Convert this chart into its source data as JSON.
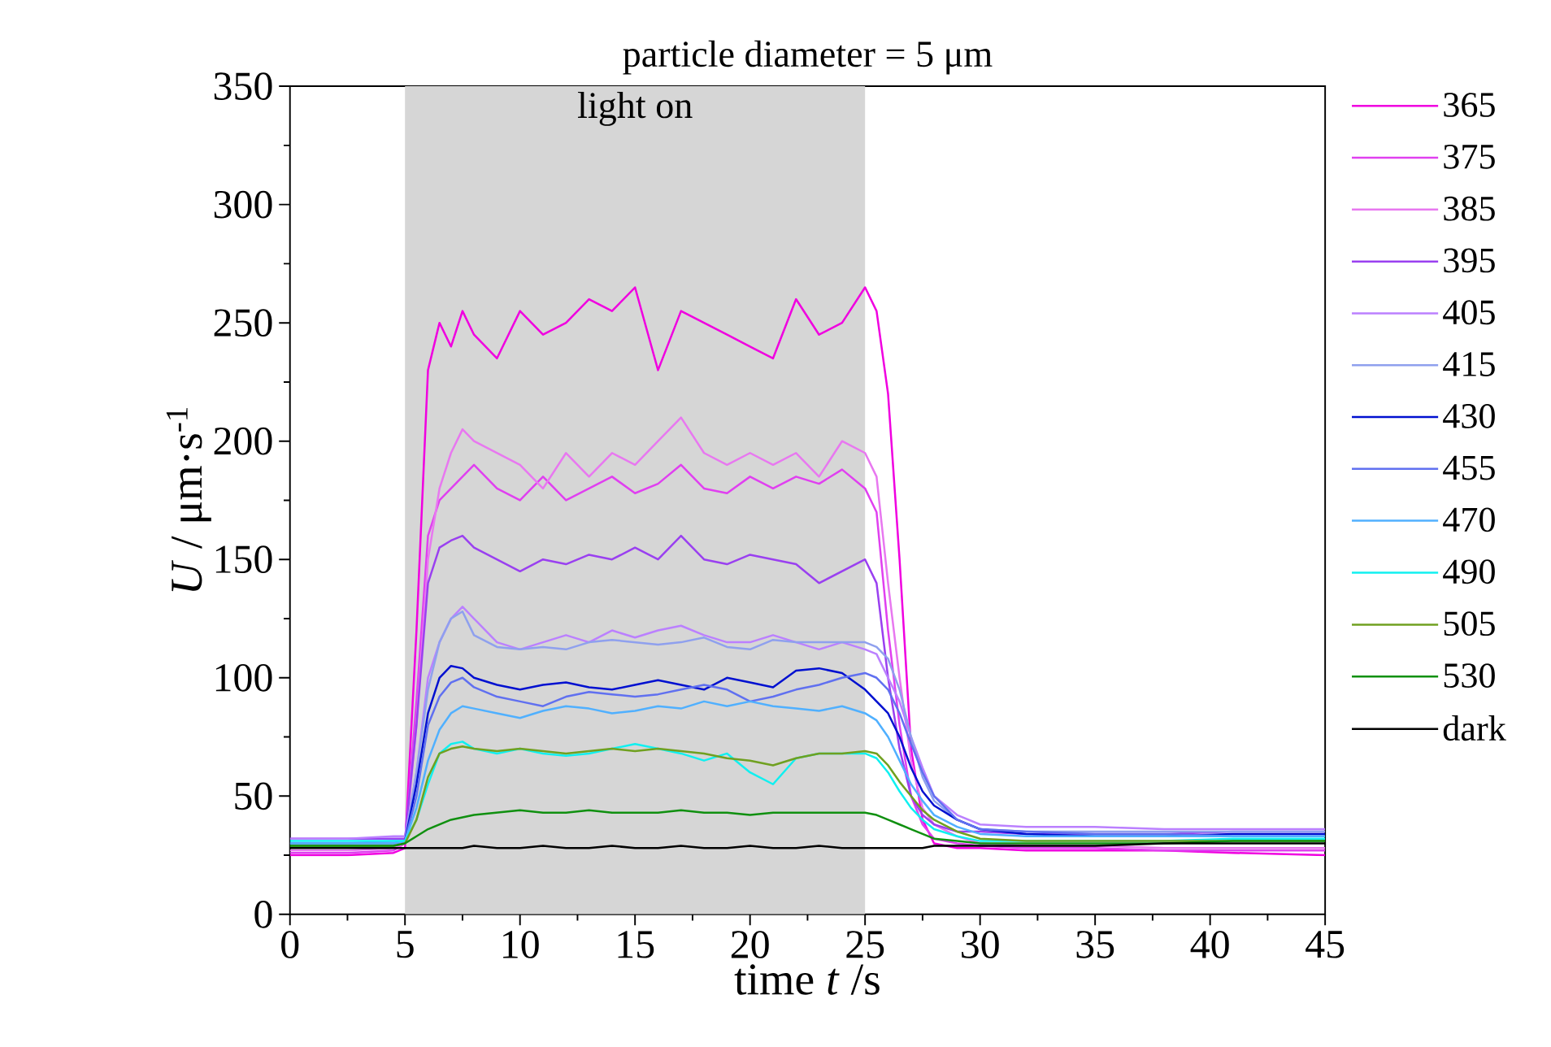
{
  "chart_data": {
    "type": "line",
    "title": "particle diameter = 5 μm",
    "xlabel": "time *t* /s",
    "ylabel": "*U* / μm·s$^{-1}$",
    "x": [
      0,
      2.5,
      4.5,
      5,
      5.5,
      6,
      6.5,
      7,
      7.5,
      8,
      9,
      10,
      11,
      12,
      13,
      14,
      15,
      16,
      17,
      18,
      19,
      20,
      21,
      22,
      23,
      24,
      25,
      25.5,
      26,
      26.5,
      27,
      27.5,
      28,
      29,
      30,
      32,
      35,
      38,
      41,
      45
    ],
    "xlim": [
      0,
      45
    ],
    "xticks": [
      0,
      5,
      10,
      15,
      20,
      25,
      30,
      35,
      40,
      45
    ],
    "ylim": [
      0,
      350
    ],
    "yticks": [
      0,
      50,
      100,
      150,
      200,
      250,
      300,
      350
    ],
    "legend": "right",
    "bands": [
      {
        "axis": "x",
        "from": 5,
        "to": 25,
        "label": "light on",
        "color": "#d6d6d6"
      }
    ],
    "series": [
      {
        "name": "365",
        "color": "#f000e0",
        "values": [
          25,
          25,
          26,
          28,
          120,
          230,
          250,
          240,
          255,
          245,
          235,
          255,
          245,
          250,
          260,
          255,
          265,
          230,
          255,
          250,
          245,
          240,
          235,
          260,
          245,
          250,
          265,
          255,
          220,
          150,
          70,
          40,
          30,
          28,
          28,
          27,
          27,
          27,
          26,
          25
        ]
      },
      {
        "name": "375",
        "color": "#e040f0",
        "values": [
          26,
          26,
          27,
          30,
          90,
          160,
          175,
          180,
          185,
          190,
          180,
          175,
          185,
          175,
          180,
          185,
          178,
          182,
          190,
          180,
          178,
          185,
          180,
          185,
          182,
          188,
          180,
          170,
          120,
          80,
          50,
          38,
          32,
          30,
          29,
          28,
          28,
          27,
          27,
          27
        ]
      },
      {
        "name": "385",
        "color": "#e878f0",
        "values": [
          27,
          27,
          28,
          30,
          80,
          150,
          180,
          195,
          205,
          200,
          195,
          190,
          180,
          195,
          185,
          195,
          190,
          200,
          210,
          195,
          190,
          195,
          190,
          195,
          185,
          200,
          195,
          185,
          140,
          100,
          65,
          45,
          38,
          33,
          30,
          29,
          29,
          28,
          28,
          28
        ]
      },
      {
        "name": "395",
        "color": "#9a40f0",
        "values": [
          32,
          32,
          32,
          32,
          80,
          140,
          155,
          158,
          160,
          155,
          150,
          145,
          150,
          148,
          152,
          150,
          155,
          150,
          160,
          150,
          148,
          152,
          150,
          148,
          140,
          145,
          150,
          140,
          100,
          70,
          50,
          42,
          38,
          35,
          35,
          34,
          34,
          34,
          35,
          35
        ]
      },
      {
        "name": "405",
        "color": "#bb80ff",
        "values": [
          32,
          32,
          33,
          33,
          60,
          100,
          115,
          125,
          130,
          125,
          115,
          112,
          115,
          118,
          115,
          120,
          117,
          120,
          122,
          118,
          115,
          115,
          118,
          115,
          112,
          115,
          112,
          110,
          100,
          90,
          75,
          62,
          50,
          42,
          38,
          37,
          37,
          36,
          36,
          36
        ]
      },
      {
        "name": "415",
        "color": "#8fa0ee",
        "values": [
          30,
          30,
          31,
          31,
          60,
          95,
          115,
          125,
          128,
          118,
          113,
          112,
          113,
          112,
          115,
          116,
          115,
          114,
          115,
          117,
          113,
          112,
          116,
          115,
          115,
          115,
          115,
          113,
          108,
          95,
          75,
          58,
          48,
          40,
          36,
          35,
          35,
          35,
          35,
          35
        ]
      },
      {
        "name": "430",
        "color": "#0010d0",
        "values": [
          null,
          null,
          30,
          31,
          55,
          85,
          100,
          105,
          104,
          100,
          97,
          95,
          97,
          98,
          96,
          95,
          97,
          99,
          97,
          95,
          100,
          98,
          96,
          103,
          104,
          102,
          95,
          90,
          85,
          75,
          62,
          52,
          46,
          40,
          36,
          34,
          33,
          33,
          34,
          34
        ]
      },
      {
        "name": "455",
        "color": "#6070f0",
        "values": [
          30,
          30,
          30,
          31,
          50,
          80,
          92,
          98,
          100,
          96,
          92,
          90,
          88,
          92,
          94,
          93,
          92,
          93,
          95,
          97,
          95,
          90,
          92,
          95,
          97,
          100,
          102,
          100,
          95,
          85,
          72,
          60,
          50,
          40,
          36,
          35,
          34,
          34,
          33,
          33
        ]
      },
      {
        "name": "470",
        "color": "#50b0ff",
        "values": [
          30,
          30,
          30,
          31,
          45,
          65,
          78,
          85,
          88,
          87,
          85,
          83,
          86,
          88,
          87,
          85,
          86,
          88,
          87,
          90,
          88,
          90,
          88,
          87,
          86,
          88,
          85,
          82,
          75,
          65,
          55,
          48,
          42,
          37,
          34,
          33,
          33,
          33,
          33,
          33
        ]
      },
      {
        "name": "490",
        "color": "#10f0f0",
        "values": [
          31,
          31,
          31,
          31,
          40,
          55,
          68,
          72,
          73,
          70,
          68,
          70,
          68,
          67,
          68,
          70,
          72,
          70,
          68,
          65,
          68,
          60,
          55,
          66,
          68,
          68,
          68,
          66,
          60,
          52,
          45,
          40,
          36,
          33,
          31,
          31,
          31,
          31,
          32,
          32
        ]
      },
      {
        "name": "505",
        "color": "#70a020",
        "values": [
          29,
          29,
          29,
          30,
          40,
          58,
          68,
          70,
          71,
          70,
          69,
          70,
          69,
          68,
          69,
          70,
          69,
          70,
          69,
          68,
          66,
          65,
          63,
          66,
          68,
          68,
          69,
          68,
          63,
          56,
          50,
          44,
          40,
          35,
          32,
          31,
          31,
          31,
          31,
          31
        ]
      },
      {
        "name": "530",
        "color": "#109010",
        "values": [
          29,
          29,
          29,
          30,
          33,
          36,
          38,
          40,
          41,
          42,
          43,
          44,
          43,
          43,
          44,
          43,
          43,
          43,
          44,
          43,
          43,
          42,
          43,
          43,
          43,
          43,
          43,
          42,
          40,
          38,
          36,
          34,
          32,
          31,
          30,
          30,
          30,
          30,
          31,
          31
        ]
      },
      {
        "name": "dark",
        "color": "#000000",
        "values": [
          28,
          28,
          28,
          28,
          28,
          28,
          28,
          28,
          28,
          29,
          28,
          28,
          29,
          28,
          28,
          29,
          28,
          28,
          29,
          28,
          28,
          29,
          28,
          28,
          29,
          28,
          28,
          28,
          28,
          28,
          28,
          28,
          29,
          29,
          29,
          29,
          29,
          30,
          30,
          30
        ]
      }
    ]
  }
}
